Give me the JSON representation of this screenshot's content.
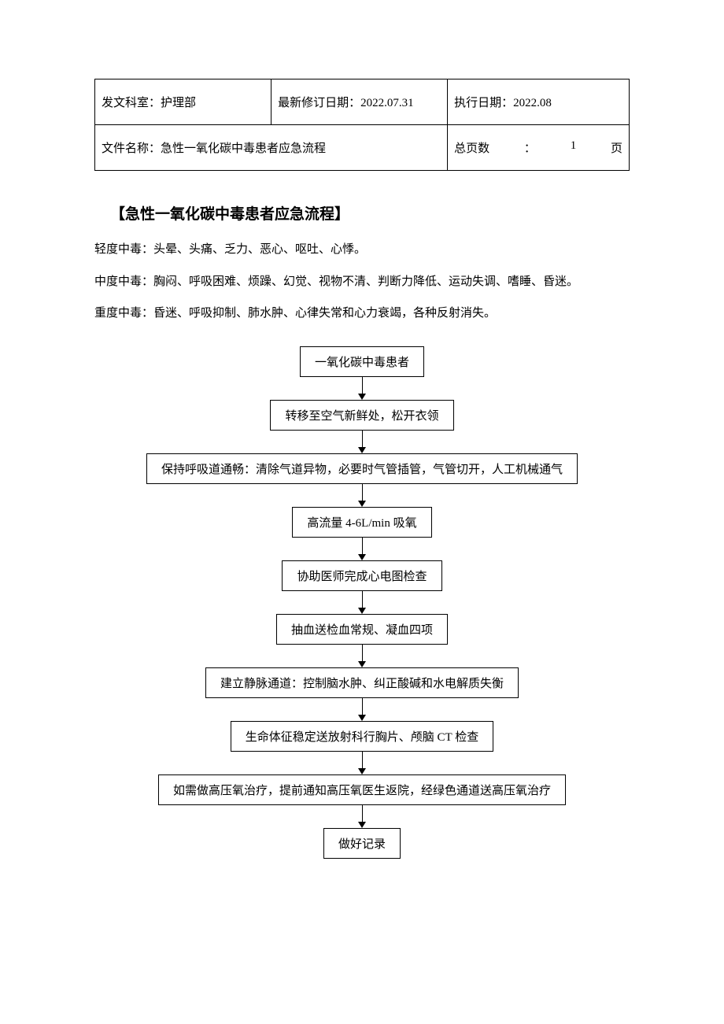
{
  "header": {
    "dept_label": "发文科室：护理部",
    "rev_label": "最新修订日期：2022.07.31",
    "exec_label": "执行日期：2022.08",
    "docname_label": "文件名称：急性一氧化碳中毒患者应急流程",
    "pages_label": "总页数",
    "pages_colon": "：",
    "pages_value": "1",
    "pages_unit": "页"
  },
  "title": "【急性一氧化碳中毒患者应急流程】",
  "severity": {
    "mild": "轻度中毒：头晕、头痛、乏力、恶心、呕吐、心悸。",
    "moderate": "中度中毒：胸闷、呼吸困难、烦躁、幻觉、视物不清、判断力降低、运动失调、嗜睡、昏迷。",
    "severe": "重度中毒：昏迷、呼吸抑制、肺水肿、心律失常和心力衰竭，各种反射消失。"
  },
  "flowchart": {
    "type": "flowchart",
    "direction": "top-to-bottom",
    "node_border_color": "#000000",
    "node_background_color": "#ffffff",
    "node_font_size_pt": 11,
    "arrow_color": "#000000",
    "nodes": [
      {
        "id": "n0",
        "label": "一氧化碳中毒患者"
      },
      {
        "id": "n1",
        "label": "转移至空气新鲜处，松开衣领"
      },
      {
        "id": "n2",
        "label": "保持呼吸道通畅：清除气道异物，必要时气管插管，气管切开，人工机械通气"
      },
      {
        "id": "n3",
        "label": "高流量 4-6L/min 吸氧"
      },
      {
        "id": "n4",
        "label": "协助医师完成心电图检查"
      },
      {
        "id": "n5",
        "label": "抽血送检血常规、凝血四项"
      },
      {
        "id": "n6",
        "label": "建立静脉通道：控制脑水肿、纠正酸碱和水电解质失衡"
      },
      {
        "id": "n7",
        "label": "生命体征稳定送放射科行胸片、颅脑 CT 检查"
      },
      {
        "id": "n8",
        "label": "如需做高压氧治疗，提前通知高压氧医生返院，经绿色通道送高压氧治疗"
      },
      {
        "id": "n9",
        "label": "做好记录"
      }
    ],
    "edges": [
      {
        "from": "n0",
        "to": "n1"
      },
      {
        "from": "n1",
        "to": "n2"
      },
      {
        "from": "n2",
        "to": "n3"
      },
      {
        "from": "n3",
        "to": "n4"
      },
      {
        "from": "n4",
        "to": "n5"
      },
      {
        "from": "n5",
        "to": "n6"
      },
      {
        "from": "n6",
        "to": "n7"
      },
      {
        "from": "n7",
        "to": "n8"
      },
      {
        "from": "n8",
        "to": "n9"
      }
    ]
  },
  "colors": {
    "text": "#000000",
    "background": "#ffffff",
    "border": "#000000"
  }
}
